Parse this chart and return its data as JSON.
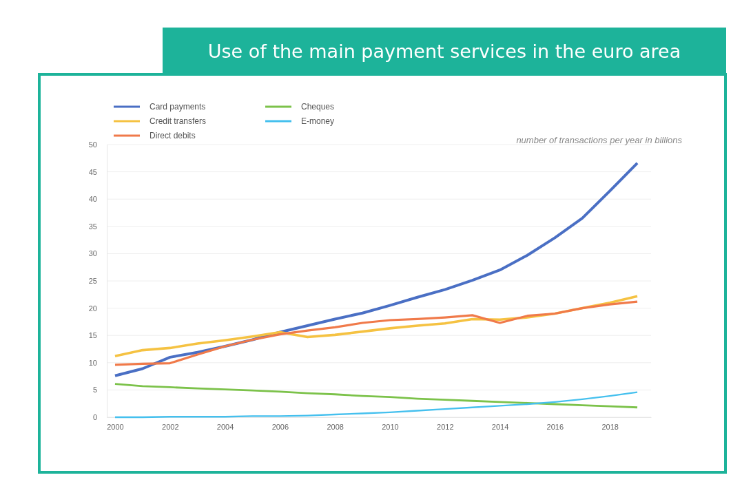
{
  "chart_data": {
    "type": "line",
    "title": "Use of the main payment services in the euro area",
    "ylabel": "number of transactions per year in billions",
    "x": [
      2000,
      2001,
      2002,
      2003,
      2004,
      2005,
      2006,
      2007,
      2008,
      2009,
      2010,
      2011,
      2012,
      2013,
      2014,
      2015,
      2016,
      2017,
      2018,
      2019
    ],
    "xlim": [
      1999.7,
      2019.5
    ],
    "xticks": [
      2000,
      2002,
      2004,
      2006,
      2008,
      2010,
      2012,
      2014,
      2016,
      2018
    ],
    "ylim": [
      0,
      50
    ],
    "yticks": [
      0,
      5,
      10,
      15,
      20,
      25,
      30,
      35,
      40,
      45,
      50
    ],
    "grid": "y",
    "legend": "top left",
    "line_style": "solid",
    "series": [
      {
        "name": "Card payments",
        "color": "#4a6fc4",
        "values": [
          7.6,
          8.9,
          11,
          11.9,
          13,
          14.2,
          15.6,
          16.8,
          18,
          19.1,
          20.5,
          22,
          23.4,
          25.1,
          27,
          29.7,
          32.9,
          36.5,
          41.5,
          46.6
        ]
      },
      {
        "name": "Credit transfers",
        "color": "#f5c242",
        "values": [
          11.2,
          12.3,
          12.7,
          13.5,
          14.1,
          14.8,
          15.6,
          14.7,
          15.1,
          15.7,
          16.3,
          16.8,
          17.2,
          18,
          17.9,
          18.3,
          19,
          20,
          21,
          22.2
        ]
      },
      {
        "name": "Direct debits",
        "color": "#f07a4a",
        "values": [
          9.6,
          9.8,
          9.9,
          11.5,
          13,
          14.2,
          15.2,
          15.9,
          16.5,
          17.3,
          17.8,
          18,
          18.3,
          18.7,
          17.3,
          18.6,
          19,
          20,
          20.7,
          21.2
        ]
      },
      {
        "name": "Cheques",
        "color": "#7cc24a",
        "values": [
          6.1,
          5.7,
          5.5,
          5.3,
          5.1,
          4.9,
          4.7,
          4.4,
          4.2,
          3.9,
          3.7,
          3.4,
          3.2,
          3,
          2.8,
          2.6,
          2.4,
          2.2,
          2,
          1.8
        ]
      },
      {
        "name": "E-money",
        "color": "#45c0ee",
        "values": [
          0,
          0,
          0.1,
          0.1,
          0.1,
          0.2,
          0.2,
          0.3,
          0.5,
          0.7,
          0.9,
          1.2,
          1.5,
          1.8,
          2.1,
          2.4,
          2.8,
          3.3,
          3.9,
          4.6
        ]
      }
    ]
  }
}
